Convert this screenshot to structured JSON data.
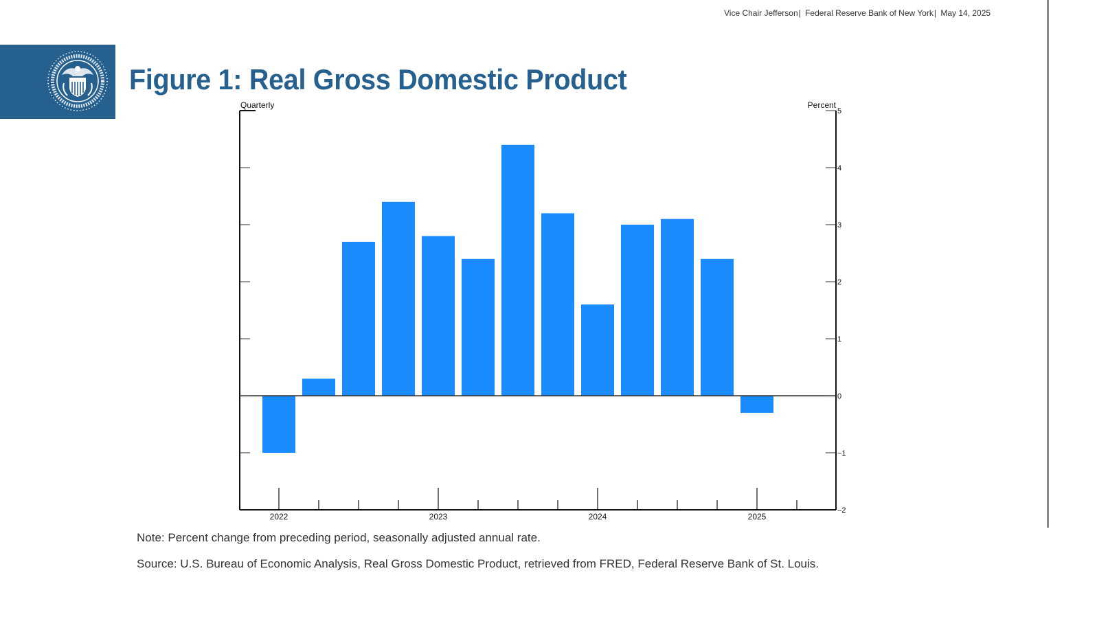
{
  "header": {
    "speaker": "Vice Chair Jefferson",
    "venue": "Federal Reserve Bank of New York",
    "date": "May 14, 2025",
    "separator": "|"
  },
  "logo": {
    "icon": "federal-reserve-seal-icon",
    "text": "BOARD OF GOVERNORS OF THE FEDERAL RESERVE SYSTEM",
    "background_color": "#25608f"
  },
  "title": "Figure 1: Real Gross Domestic Product",
  "note": "Note: Percent change from preceding period, seasonally adjusted annual rate.",
  "source": "Source: U.S. Bureau of Economic Analysis, Real Gross Domestic Product, retrieved from FRED, Federal Reserve Bank of St. Louis.",
  "chart_data": {
    "type": "bar",
    "title": "Figure 1: Real Gross Domestic Product",
    "frequency_label": "Quarterly",
    "ylabel": "Percent",
    "xlabel": "",
    "bar_color": "#1b8cff",
    "categories": [
      "2022 Q1",
      "2022 Q2",
      "2022 Q3",
      "2022 Q4",
      "2023 Q1",
      "2023 Q2",
      "2023 Q3",
      "2023 Q4",
      "2024 Q1",
      "2024 Q2",
      "2024 Q3",
      "2024 Q4",
      "2025 Q1"
    ],
    "values": [
      -1.0,
      0.3,
      2.7,
      3.4,
      2.8,
      2.4,
      4.4,
      3.2,
      1.6,
      3.0,
      3.1,
      2.4,
      -0.3
    ],
    "ylim": [
      -2,
      5
    ],
    "yticks": [
      5,
      4,
      3,
      2,
      1,
      0,
      -1,
      -2
    ],
    "ytick_labels": [
      "5",
      "4",
      "3",
      "2",
      "1",
      "0",
      "−1",
      "−2"
    ],
    "x_major_labels": [
      {
        "label": "2022",
        "quarter_index": 0
      },
      {
        "label": "2023",
        "quarter_index": 4
      },
      {
        "label": "2024",
        "quarter_index": 8
      },
      {
        "label": "2025",
        "quarter_index": 12
      }
    ],
    "x_quarter_count": 14,
    "y_axis_position": "right",
    "grid": false,
    "legend": "none"
  }
}
